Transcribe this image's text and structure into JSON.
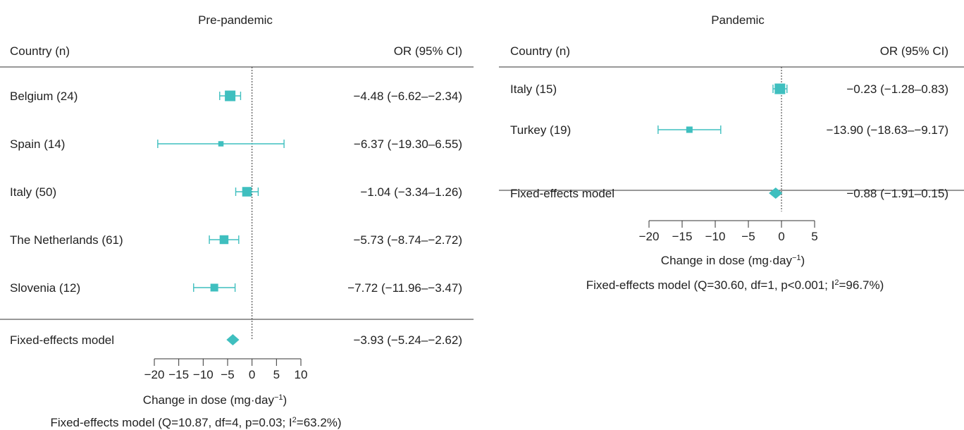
{
  "colors": {
    "marker": "#3fbfbf",
    "text": "#222222",
    "rule": "#333333"
  },
  "chart_data": [
    {
      "type": "forest",
      "title": "Pre-pandemic",
      "col_country": "Country (n)",
      "col_or": "OR (95% CI)",
      "xlabel": "Change in dose (mg·day",
      "xlabel_sup": "−1",
      "xlabel_close": ")",
      "xlim": [
        -20,
        10
      ],
      "ticks": [
        -20,
        -15,
        -10,
        -5,
        0,
        5,
        10
      ],
      "tick_labels": [
        "−20",
        "−15",
        "−10",
        "−5",
        "0",
        "5",
        "10"
      ],
      "rows": [
        {
          "label": "Belgium (24)",
          "est": -4.48,
          "lo": -6.62,
          "hi": -2.34,
          "text": "−4.48 (−6.62–−2.34)",
          "weight": 1.0
        },
        {
          "label": "Spain (14)",
          "est": -6.37,
          "lo": -19.3,
          "hi": 6.55,
          "text": "−6.37 (−19.30–6.55)",
          "weight": 0.25
        },
        {
          "label": "Italy (50)",
          "est": -1.04,
          "lo": -3.34,
          "hi": 1.26,
          "text": "−1.04 (−3.34–1.26)",
          "weight": 0.85
        },
        {
          "label": "The Netherlands (61)",
          "est": -5.73,
          "lo": -8.74,
          "hi": -2.72,
          "text": "−5.73 (−8.74–−2.72)",
          "weight": 0.75
        },
        {
          "label": "Slovenia (12)",
          "est": -7.72,
          "lo": -11.96,
          "hi": -3.47,
          "text": "−7.72 (−11.96–−3.47)",
          "weight": 0.6
        }
      ],
      "model": {
        "label": "Fixed-effects model",
        "est": -3.93,
        "lo": -5.24,
        "hi": -2.62,
        "text": "−3.93 (−5.24–−2.62)"
      },
      "stats_pre": "Fixed-effects model (Q=10.87, df=4, p=0.03; I",
      "stats_sup": "2",
      "stats_post": "=63.2%)"
    },
    {
      "type": "forest",
      "title": "Pandemic",
      "col_country": "Country (n)",
      "col_or": "OR (95% CI)",
      "xlabel": "Change in dose (mg·day",
      "xlabel_sup": "−1",
      "xlabel_close": ")",
      "xlim": [
        -20,
        5
      ],
      "ticks": [
        -20,
        -15,
        -10,
        -5,
        0,
        5
      ],
      "tick_labels": [
        "−20",
        "−15",
        "−10",
        "−5",
        "0",
        "5"
      ],
      "rows": [
        {
          "label": "Italy (15)",
          "est": -0.23,
          "lo": -1.28,
          "hi": 0.83,
          "text": "−0.23 (−1.28–0.83)",
          "weight": 1.0
        },
        {
          "label": "Turkey (19)",
          "est": -13.9,
          "lo": -18.63,
          "hi": -9.17,
          "text": "−13.90 (−18.63–−9.17)",
          "weight": 0.4
        }
      ],
      "model": {
        "label": "Fixed-effects model",
        "est": -0.88,
        "lo": -1.91,
        "hi": 0.15,
        "text": "−0.88 (−1.91–0.15)"
      },
      "stats_pre": "Fixed-effects model (Q=30.60, df=1, p<0.001; I",
      "stats_sup": "2",
      "stats_post": "=96.7%)"
    }
  ]
}
